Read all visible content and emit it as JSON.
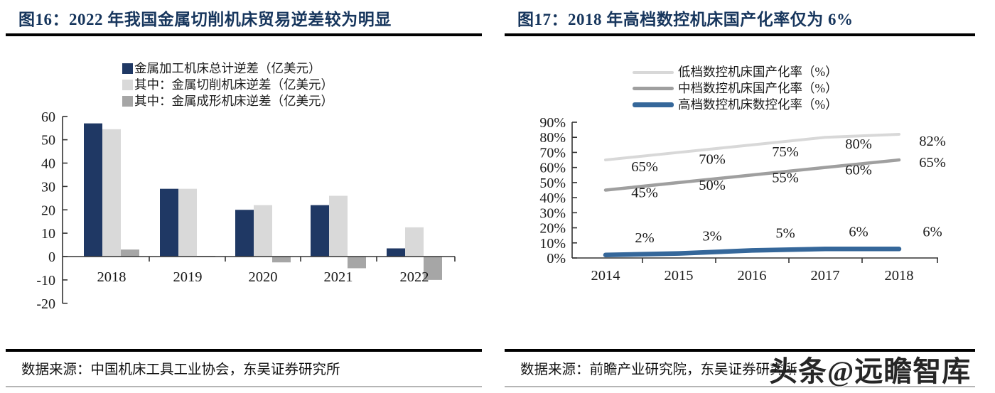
{
  "figures": [
    {
      "title": "图16：2022 年我国金属切削机床贸易逆差较为明显",
      "source": "数据来源：中国机床工具工业协会，东吴证券研究所"
    },
    {
      "title": "图17：2018 年高档数控机床国产化率仅为 6%",
      "source": "数据来源：前瞻产业研究院，东吴证券研究所"
    }
  ],
  "watermark": {
    "text": "头条@远瞻智库"
  },
  "colors": {
    "title_navy": "#17365D",
    "bar_navy": "#1F3864",
    "light_gray": "#D9D9D9",
    "mid_gray": "#A6A6A6",
    "line_blue": "#35679A",
    "axis": "#333333"
  },
  "chart_data": [
    {
      "type": "bar",
      "title": "2022 年我国金属切削机床贸易逆差较为明显",
      "categories": [
        "2018",
        "2019",
        "2020",
        "2021",
        "2022"
      ],
      "series": [
        {
          "name": "金属加工机床总计逆差（亿美元）",
          "color": "#1F3864",
          "values": [
            57,
            29,
            20,
            22,
            3.5
          ]
        },
        {
          "name": "其中：金属切削机床逆差（亿美元）",
          "color": "#D9D9D9",
          "values": [
            54.5,
            29,
            22,
            26,
            12.5
          ]
        },
        {
          "name": "其中：金属成形机床逆差（亿美元）",
          "color": "#A6A6A6",
          "values": [
            3,
            0.3,
            -2.5,
            -5,
            -10
          ]
        }
      ],
      "ylim": [
        -20,
        60
      ],
      "ytick_step": 10,
      "legend_position": "top",
      "grid": false,
      "data_labels": false
    },
    {
      "type": "line",
      "title": "2018 年高档数控机床国产化率仅为 6%",
      "x": [
        "2014",
        "2015",
        "2016",
        "2017",
        "2018"
      ],
      "series": [
        {
          "name": "低档数控机床国产化率（%）",
          "color": "#D8D8D8",
          "width": 4,
          "values": [
            65,
            70,
            75,
            80,
            82
          ]
        },
        {
          "name": "中档数控机床国产化率（%）",
          "color": "#9F9F9F",
          "width": 4.5,
          "values": [
            45,
            50,
            55,
            60,
            65
          ]
        },
        {
          "name": "高档数控机床数控化率（%）",
          "color": "#35679A",
          "width": 6.5,
          "values": [
            2,
            3,
            5,
            6,
            6
          ]
        }
      ],
      "ylim": [
        0,
        90
      ],
      "ytick_step": 10,
      "ytick_format": "percent",
      "legend_position": "top",
      "grid": false,
      "data_labels": true
    }
  ]
}
